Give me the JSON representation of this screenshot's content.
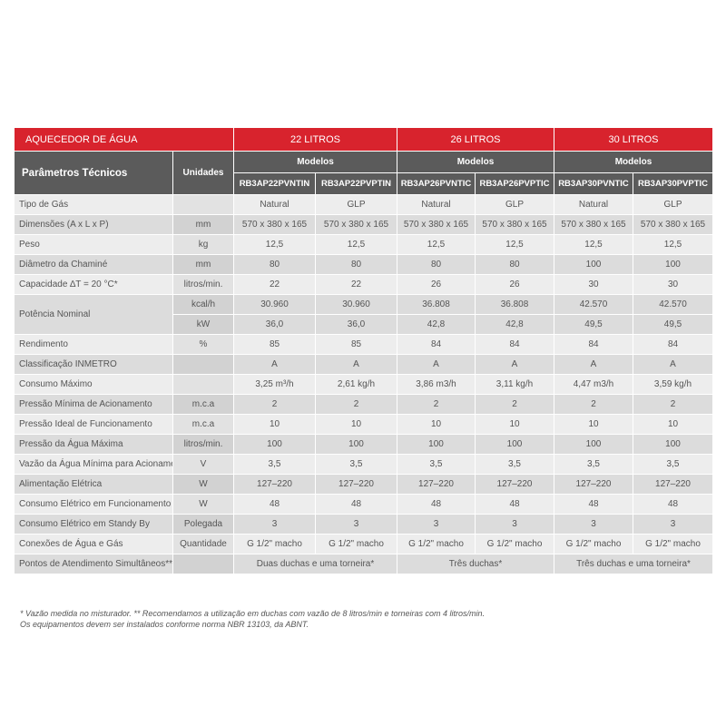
{
  "table": {
    "header": {
      "title": "AQUECEDOR DE ÁGUA",
      "param_header": "Parâmetros Técnicos",
      "unit_header": "Unidades",
      "groups": [
        {
          "label": "22 LITROS",
          "subheader": "Modelos",
          "models": [
            "RB3AP22PVNTIN",
            "RB3AP22PVPTIN"
          ]
        },
        {
          "label": "26 LITROS",
          "subheader": "Modelos",
          "models": [
            "RB3AP26PVNTIC",
            "RB3AP26PVPTIC"
          ]
        },
        {
          "label": "30 LITROS",
          "subheader": "Modelos",
          "models": [
            "RB3AP30PVNTIC",
            "RB3AP30PVPTIC"
          ]
        }
      ]
    },
    "rows": [
      {
        "label": "Tipo de Gás",
        "values": [
          "Natural",
          "GLP",
          "Natural",
          "GLP",
          "Natural",
          "GLP"
        ]
      },
      {
        "label": "Dimensões (A x L x P)",
        "unit": "mm",
        "values": [
          "570 x 380 x 165",
          "570 x 380 x 165",
          "570 x 380 x 165",
          "570 x 380 x 165",
          "570 x 380 x 165",
          "570 x 380 x 165"
        ]
      },
      {
        "label": "Peso",
        "unit": "kg",
        "values": [
          "12,5",
          "12,5",
          "12,5",
          "12,5",
          "12,5",
          "12,5"
        ]
      },
      {
        "label": "Diâmetro da Chaminé",
        "unit": "mm",
        "values": [
          "80",
          "80",
          "80",
          "80",
          "100",
          "100"
        ]
      },
      {
        "label": "Capacidade ∆T = 20 °C*",
        "unit": "litros/min.",
        "values": [
          "22",
          "22",
          "26",
          "26",
          "30",
          "30"
        ]
      },
      {
        "label": "Potência Nominal",
        "subrows": [
          {
            "unit": "kcal/h",
            "values": [
              "30.960",
              "30.960",
              "36.808",
              "36.808",
              "42.570",
              "42.570"
            ]
          },
          {
            "unit": "kW",
            "values": [
              "36,0",
              "36,0",
              "42,8",
              "42,8",
              "49,5",
              "49,5"
            ]
          }
        ]
      },
      {
        "label": "Rendimento",
        "unit": "%",
        "values": [
          "85",
          "85",
          "84",
          "84",
          "84",
          "84"
        ]
      },
      {
        "label": "Classificação INMETRO",
        "values": [
          "A",
          "A",
          "A",
          "A",
          "A",
          "A"
        ]
      },
      {
        "label": "Consumo Máximo",
        "values": [
          "3,25 m³/h",
          "2,61 kg/h",
          "3,86 m3/h",
          "3,11 kg/h",
          "4,47 m3/h",
          "3,59 kg/h"
        ]
      },
      {
        "label": "Pressão Mínima de Acionamento",
        "unit": "m.c.a",
        "values": [
          "2",
          "2",
          "2",
          "2",
          "2",
          "2"
        ]
      },
      {
        "label": "Pressão Ideal de Funcionamento",
        "unit": "m.c.a",
        "values": [
          "10",
          "10",
          "10",
          "10",
          "10",
          "10"
        ]
      },
      {
        "label": "Pressão da Água Máxima",
        "unit": "litros/min.",
        "values": [
          "100",
          "100",
          "100",
          "100",
          "100",
          "100"
        ]
      },
      {
        "label": "Vazão da Água Mínima para Acionamento",
        "unit": "V",
        "values": [
          "3,5",
          "3,5",
          "3,5",
          "3,5",
          "3,5",
          "3,5"
        ]
      },
      {
        "label": "Alimentação Elétrica",
        "unit": "W",
        "values": [
          "127–220",
          "127–220",
          "127–220",
          "127–220",
          "127–220",
          "127–220"
        ]
      },
      {
        "label": "Consumo Elétrico em Funcionamento",
        "unit": "W",
        "values": [
          "48",
          "48",
          "48",
          "48",
          "48",
          "48"
        ]
      },
      {
        "label": "Consumo Elétrico em Standy By",
        "unit": "Polegada",
        "values": [
          "3",
          "3",
          "3",
          "3",
          "3",
          "3"
        ]
      },
      {
        "label": "Conexões de Água e Gás",
        "unit": "Quantidade",
        "values": [
          "G 1/2\" macho",
          "G 1/2\" macho",
          "G 1/2\" macho",
          "G 1/2\" macho",
          "G 1/2\" macho",
          "G 1/2\" macho"
        ]
      },
      {
        "label": "Pontos de Atendimento Simultâneos**",
        "group_values": [
          "Duas duchas e uma torneira*",
          "Três duchas*",
          "Três duchas e uma torneira*"
        ]
      }
    ],
    "footnotes": [
      "* Vazão medida no misturador. ** Recomendamos a utilização em duchas com vazão de 8 litros/min e torneiras com 4 litros/min.",
      "Os equipamentos devem ser instalados conforme norma NBR 13103, da ABNT."
    ]
  }
}
